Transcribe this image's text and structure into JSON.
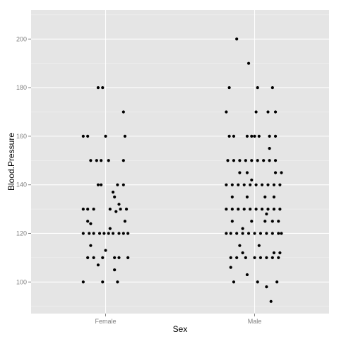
{
  "chart_data": {
    "type": "scatter",
    "title": "",
    "xlabel": "Sex",
    "ylabel": "Blood.Pressure",
    "categories": [
      "Female",
      "Male"
    ],
    "ylim": [
      87,
      212
    ],
    "yticks": [
      100,
      120,
      140,
      160,
      180,
      200
    ],
    "grid": true,
    "background": "#e5e5e5",
    "gridline_color": "#ffffff",
    "point_color": "#000000",
    "jitter": true,
    "points": [
      {
        "x": "Female",
        "offset": -0.05,
        "y": 180
      },
      {
        "x": "Female",
        "offset": -0.02,
        "y": 180
      },
      {
        "x": "Female",
        "offset": 0.12,
        "y": 170
      },
      {
        "x": "Female",
        "offset": -0.15,
        "y": 160
      },
      {
        "x": "Female",
        "offset": -0.12,
        "y": 160
      },
      {
        "x": "Female",
        "offset": 0.0,
        "y": 160
      },
      {
        "x": "Female",
        "offset": 0.13,
        "y": 160
      },
      {
        "x": "Female",
        "offset": -0.1,
        "y": 150
      },
      {
        "x": "Female",
        "offset": -0.06,
        "y": 150
      },
      {
        "x": "Female",
        "offset": -0.03,
        "y": 150
      },
      {
        "x": "Female",
        "offset": 0.02,
        "y": 150
      },
      {
        "x": "Female",
        "offset": 0.12,
        "y": 150
      },
      {
        "x": "Female",
        "offset": -0.05,
        "y": 140
      },
      {
        "x": "Female",
        "offset": -0.03,
        "y": 140
      },
      {
        "x": "Female",
        "offset": 0.08,
        "y": 140
      },
      {
        "x": "Female",
        "offset": 0.12,
        "y": 140
      },
      {
        "x": "Female",
        "offset": 0.05,
        "y": 137
      },
      {
        "x": "Female",
        "offset": 0.06,
        "y": 135
      },
      {
        "x": "Female",
        "offset": 0.09,
        "y": 132
      },
      {
        "x": "Female",
        "offset": -0.15,
        "y": 130
      },
      {
        "x": "Female",
        "offset": -0.12,
        "y": 130
      },
      {
        "x": "Female",
        "offset": -0.08,
        "y": 130
      },
      {
        "x": "Female",
        "offset": 0.03,
        "y": 130
      },
      {
        "x": "Female",
        "offset": 0.1,
        "y": 130
      },
      {
        "x": "Female",
        "offset": 0.14,
        "y": 130
      },
      {
        "x": "Female",
        "offset": 0.07,
        "y": 129
      },
      {
        "x": "Female",
        "offset": -0.12,
        "y": 125
      },
      {
        "x": "Female",
        "offset": 0.13,
        "y": 125
      },
      {
        "x": "Female",
        "offset": -0.1,
        "y": 124
      },
      {
        "x": "Female",
        "offset": -0.15,
        "y": 120
      },
      {
        "x": "Female",
        "offset": -0.11,
        "y": 120
      },
      {
        "x": "Female",
        "offset": -0.08,
        "y": 120
      },
      {
        "x": "Female",
        "offset": -0.04,
        "y": 120
      },
      {
        "x": "Female",
        "offset": -0.01,
        "y": 120
      },
      {
        "x": "Female",
        "offset": 0.02,
        "y": 120
      },
      {
        "x": "Female",
        "offset": 0.05,
        "y": 120
      },
      {
        "x": "Female",
        "offset": 0.09,
        "y": 120
      },
      {
        "x": "Female",
        "offset": 0.12,
        "y": 120
      },
      {
        "x": "Female",
        "offset": 0.15,
        "y": 120
      },
      {
        "x": "Female",
        "offset": 0.03,
        "y": 122
      },
      {
        "x": "Female",
        "offset": -0.1,
        "y": 115
      },
      {
        "x": "Female",
        "offset": 0.0,
        "y": 113
      },
      {
        "x": "Female",
        "offset": -0.12,
        "y": 110
      },
      {
        "x": "Female",
        "offset": -0.08,
        "y": 110
      },
      {
        "x": "Female",
        "offset": -0.02,
        "y": 110
      },
      {
        "x": "Female",
        "offset": 0.06,
        "y": 110
      },
      {
        "x": "Female",
        "offset": 0.09,
        "y": 110
      },
      {
        "x": "Female",
        "offset": 0.15,
        "y": 110
      },
      {
        "x": "Female",
        "offset": -0.05,
        "y": 107
      },
      {
        "x": "Female",
        "offset": 0.06,
        "y": 105
      },
      {
        "x": "Female",
        "offset": -0.15,
        "y": 100
      },
      {
        "x": "Female",
        "offset": -0.02,
        "y": 100
      },
      {
        "x": "Female",
        "offset": 0.08,
        "y": 100
      },
      {
        "x": "Male",
        "offset": -0.12,
        "y": 200
      },
      {
        "x": "Male",
        "offset": -0.04,
        "y": 190
      },
      {
        "x": "Male",
        "offset": -0.17,
        "y": 180
      },
      {
        "x": "Male",
        "offset": 0.02,
        "y": 180
      },
      {
        "x": "Male",
        "offset": 0.12,
        "y": 180
      },
      {
        "x": "Male",
        "offset": -0.19,
        "y": 170
      },
      {
        "x": "Male",
        "offset": 0.01,
        "y": 170
      },
      {
        "x": "Male",
        "offset": 0.09,
        "y": 170
      },
      {
        "x": "Male",
        "offset": 0.14,
        "y": 170
      },
      {
        "x": "Male",
        "offset": -0.17,
        "y": 160
      },
      {
        "x": "Male",
        "offset": -0.14,
        "y": 160
      },
      {
        "x": "Male",
        "offset": -0.05,
        "y": 160
      },
      {
        "x": "Male",
        "offset": -0.02,
        "y": 160
      },
      {
        "x": "Male",
        "offset": 0.0,
        "y": 160
      },
      {
        "x": "Male",
        "offset": 0.03,
        "y": 160
      },
      {
        "x": "Male",
        "offset": 0.1,
        "y": 160
      },
      {
        "x": "Male",
        "offset": 0.14,
        "y": 160
      },
      {
        "x": "Male",
        "offset": 0.1,
        "y": 155
      },
      {
        "x": "Male",
        "offset": -0.18,
        "y": 150
      },
      {
        "x": "Male",
        "offset": -0.14,
        "y": 150
      },
      {
        "x": "Male",
        "offset": -0.1,
        "y": 150
      },
      {
        "x": "Male",
        "offset": -0.06,
        "y": 150
      },
      {
        "x": "Male",
        "offset": -0.02,
        "y": 150
      },
      {
        "x": "Male",
        "offset": 0.02,
        "y": 150
      },
      {
        "x": "Male",
        "offset": 0.06,
        "y": 150
      },
      {
        "x": "Male",
        "offset": 0.1,
        "y": 150
      },
      {
        "x": "Male",
        "offset": 0.14,
        "y": 150
      },
      {
        "x": "Male",
        "offset": -0.1,
        "y": 145
      },
      {
        "x": "Male",
        "offset": -0.05,
        "y": 145
      },
      {
        "x": "Male",
        "offset": 0.14,
        "y": 145
      },
      {
        "x": "Male",
        "offset": 0.18,
        "y": 145
      },
      {
        "x": "Male",
        "offset": -0.19,
        "y": 140
      },
      {
        "x": "Male",
        "offset": -0.15,
        "y": 140
      },
      {
        "x": "Male",
        "offset": -0.11,
        "y": 140
      },
      {
        "x": "Male",
        "offset": -0.07,
        "y": 140
      },
      {
        "x": "Male",
        "offset": -0.03,
        "y": 140
      },
      {
        "x": "Male",
        "offset": 0.01,
        "y": 140
      },
      {
        "x": "Male",
        "offset": 0.05,
        "y": 140
      },
      {
        "x": "Male",
        "offset": 0.09,
        "y": 140
      },
      {
        "x": "Male",
        "offset": 0.13,
        "y": 140
      },
      {
        "x": "Male",
        "offset": 0.17,
        "y": 140
      },
      {
        "x": "Male",
        "offset": -0.02,
        "y": 142
      },
      {
        "x": "Male",
        "offset": -0.15,
        "y": 135
      },
      {
        "x": "Male",
        "offset": -0.05,
        "y": 135
      },
      {
        "x": "Male",
        "offset": 0.07,
        "y": 135
      },
      {
        "x": "Male",
        "offset": 0.13,
        "y": 135
      },
      {
        "x": "Male",
        "offset": -0.19,
        "y": 130
      },
      {
        "x": "Male",
        "offset": -0.15,
        "y": 130
      },
      {
        "x": "Male",
        "offset": -0.11,
        "y": 130
      },
      {
        "x": "Male",
        "offset": -0.07,
        "y": 130
      },
      {
        "x": "Male",
        "offset": -0.03,
        "y": 130
      },
      {
        "x": "Male",
        "offset": 0.01,
        "y": 130
      },
      {
        "x": "Male",
        "offset": 0.05,
        "y": 130
      },
      {
        "x": "Male",
        "offset": 0.09,
        "y": 130
      },
      {
        "x": "Male",
        "offset": 0.13,
        "y": 130
      },
      {
        "x": "Male",
        "offset": 0.17,
        "y": 130
      },
      {
        "x": "Male",
        "offset": 0.08,
        "y": 128
      },
      {
        "x": "Male",
        "offset": -0.15,
        "y": 125
      },
      {
        "x": "Male",
        "offset": -0.02,
        "y": 125
      },
      {
        "x": "Male",
        "offset": 0.07,
        "y": 125
      },
      {
        "x": "Male",
        "offset": 0.12,
        "y": 125
      },
      {
        "x": "Male",
        "offset": 0.16,
        "y": 125
      },
      {
        "x": "Male",
        "offset": -0.08,
        "y": 122
      },
      {
        "x": "Male",
        "offset": -0.19,
        "y": 120
      },
      {
        "x": "Male",
        "offset": -0.16,
        "y": 120
      },
      {
        "x": "Male",
        "offset": -0.12,
        "y": 120
      },
      {
        "x": "Male",
        "offset": -0.08,
        "y": 120
      },
      {
        "x": "Male",
        "offset": -0.04,
        "y": 120
      },
      {
        "x": "Male",
        "offset": 0.0,
        "y": 120
      },
      {
        "x": "Male",
        "offset": 0.04,
        "y": 120
      },
      {
        "x": "Male",
        "offset": 0.08,
        "y": 120
      },
      {
        "x": "Male",
        "offset": 0.12,
        "y": 120
      },
      {
        "x": "Male",
        "offset": 0.16,
        "y": 120
      },
      {
        "x": "Male",
        "offset": 0.18,
        "y": 120
      },
      {
        "x": "Male",
        "offset": -0.1,
        "y": 115
      },
      {
        "x": "Male",
        "offset": 0.03,
        "y": 115
      },
      {
        "x": "Male",
        "offset": -0.08,
        "y": 112
      },
      {
        "x": "Male",
        "offset": 0.13,
        "y": 112
      },
      {
        "x": "Male",
        "offset": 0.17,
        "y": 112
      },
      {
        "x": "Male",
        "offset": -0.16,
        "y": 110
      },
      {
        "x": "Male",
        "offset": -0.12,
        "y": 110
      },
      {
        "x": "Male",
        "offset": -0.06,
        "y": 110
      },
      {
        "x": "Male",
        "offset": 0.0,
        "y": 110
      },
      {
        "x": "Male",
        "offset": 0.04,
        "y": 110
      },
      {
        "x": "Male",
        "offset": 0.08,
        "y": 110
      },
      {
        "x": "Male",
        "offset": 0.12,
        "y": 110
      },
      {
        "x": "Male",
        "offset": 0.16,
        "y": 110
      },
      {
        "x": "Male",
        "offset": -0.16,
        "y": 106
      },
      {
        "x": "Male",
        "offset": -0.05,
        "y": 103
      },
      {
        "x": "Male",
        "offset": -0.14,
        "y": 100
      },
      {
        "x": "Male",
        "offset": 0.02,
        "y": 100
      },
      {
        "x": "Male",
        "offset": 0.15,
        "y": 100
      },
      {
        "x": "Male",
        "offset": 0.08,
        "y": 98
      },
      {
        "x": "Male",
        "offset": 0.11,
        "y": 92
      }
    ]
  }
}
